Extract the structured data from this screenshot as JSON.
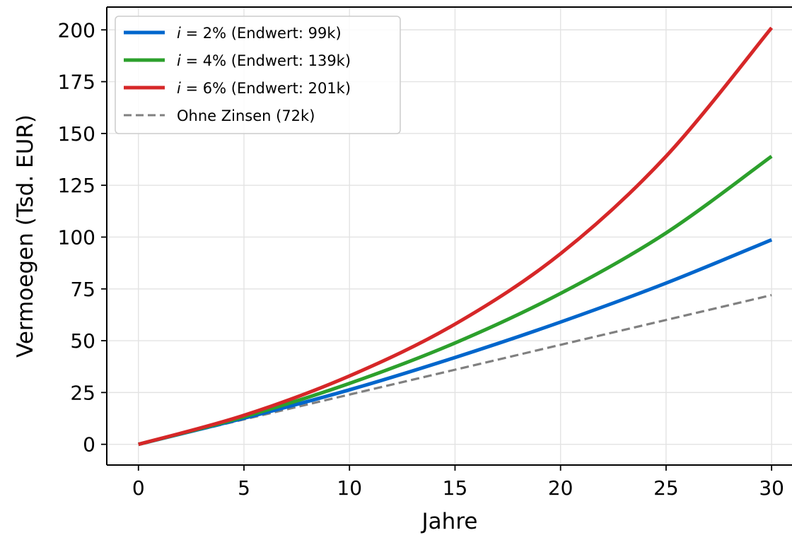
{
  "chart_data": {
    "type": "line",
    "title": "",
    "xlabel": "Jahre",
    "ylabel": "Vermoegen (Tsd. EUR)",
    "xlim": [
      -1.5,
      31
    ],
    "ylim": [
      -10,
      211
    ],
    "x_ticks": [
      0,
      5,
      10,
      15,
      20,
      25,
      30
    ],
    "y_ticks": [
      0,
      25,
      50,
      75,
      100,
      125,
      150,
      175,
      200
    ],
    "x_tick_labels": [
      "0",
      "5",
      "10",
      "15",
      "20",
      "25",
      "30"
    ],
    "y_tick_labels": [
      "0",
      "25",
      "50",
      "75",
      "100",
      "125",
      "150",
      "175",
      "200"
    ],
    "grid": true,
    "legend_position": "top-left",
    "x": [
      0,
      5,
      10,
      15,
      20,
      25,
      30
    ],
    "series": [
      {
        "name": "i = 2% (Endwert: 99k)",
        "legend_var": "i",
        "legend_rest": " = 2% (Endwert: 99k)",
        "color": "#0066cc",
        "dash": "solid",
        "values": [
          0,
          12.6,
          26.3,
          41.9,
          59.0,
          77.8,
          98.7
        ]
      },
      {
        "name": "i = 4% (Endwert: 139k)",
        "legend_var": "i",
        "legend_rest": " = 4% (Endwert: 139k)",
        "color": "#2ca02c",
        "dash": "solid",
        "values": [
          0,
          13.3,
          29.4,
          48.9,
          72.8,
          102.0,
          139.0
        ]
      },
      {
        "name": "i = 6% (Endwert: 201k)",
        "legend_var": "i",
        "legend_rest": " = 6% (Endwert: 201k)",
        "color": "#d62728",
        "dash": "solid",
        "values": [
          0,
          14.0,
          33.0,
          58.0,
          92.0,
          139.0,
          201.0
        ]
      },
      {
        "name": "Ohne Zinsen (72k)",
        "legend_var": "",
        "legend_rest": "Ohne Zinsen (72k)",
        "color": "#808080",
        "dash": "dashed",
        "values": [
          0,
          12,
          24,
          36,
          48,
          60,
          72
        ]
      }
    ]
  }
}
